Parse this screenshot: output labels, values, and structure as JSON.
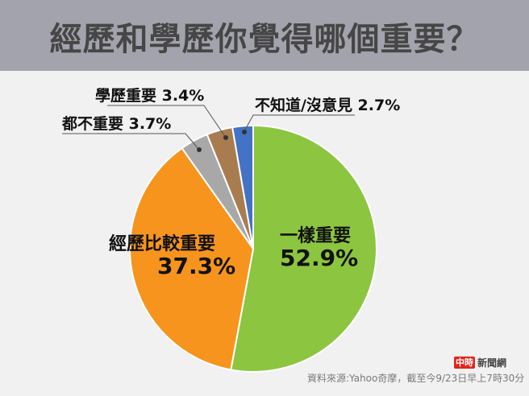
{
  "header": {
    "title": "經歷和學歷你覺得哪個重要？",
    "bg_color": "#a3a3ad"
  },
  "chart_data": {
    "type": "pie",
    "title": "經歷和學歷你覺得哪個重要？",
    "start_angle": "12 o'clock, clockwise",
    "slices": [
      {
        "label": "一樣重要",
        "value": 52.9,
        "value_label": "52.9%",
        "color": "#8cc540"
      },
      {
        "label": "經歷比較重要",
        "value": 37.3,
        "value_label": "37.3%",
        "color": "#f7941d"
      },
      {
        "label": "都不重要",
        "value": 3.7,
        "value_label": "3.7%",
        "color": "#a8a8a8"
      },
      {
        "label": "學歷重要",
        "value": 3.4,
        "value_label": "3.4%",
        "color": "#a97c50"
      },
      {
        "label": "不知道/沒意見",
        "value": 2.7,
        "value_label": "2.7%",
        "color": "#4472c4"
      }
    ],
    "legend": "none (inline and callout labels)"
  },
  "labels": {
    "same": {
      "name": "一樣重要",
      "value": "52.9%"
    },
    "experience": {
      "name": "經歷比較重要",
      "value": "37.3%"
    },
    "neither": {
      "text": "都不重要 3.7%"
    },
    "degree": {
      "text": "學歷重要 3.4%"
    },
    "unknown": {
      "text": "不知道/沒意見 2.7%"
    }
  },
  "footer": {
    "logo_badge": "中時",
    "logo_brand": "新聞網",
    "source": "資料來源:Yahoo奇摩，截至今9/23日早上7時30分"
  }
}
